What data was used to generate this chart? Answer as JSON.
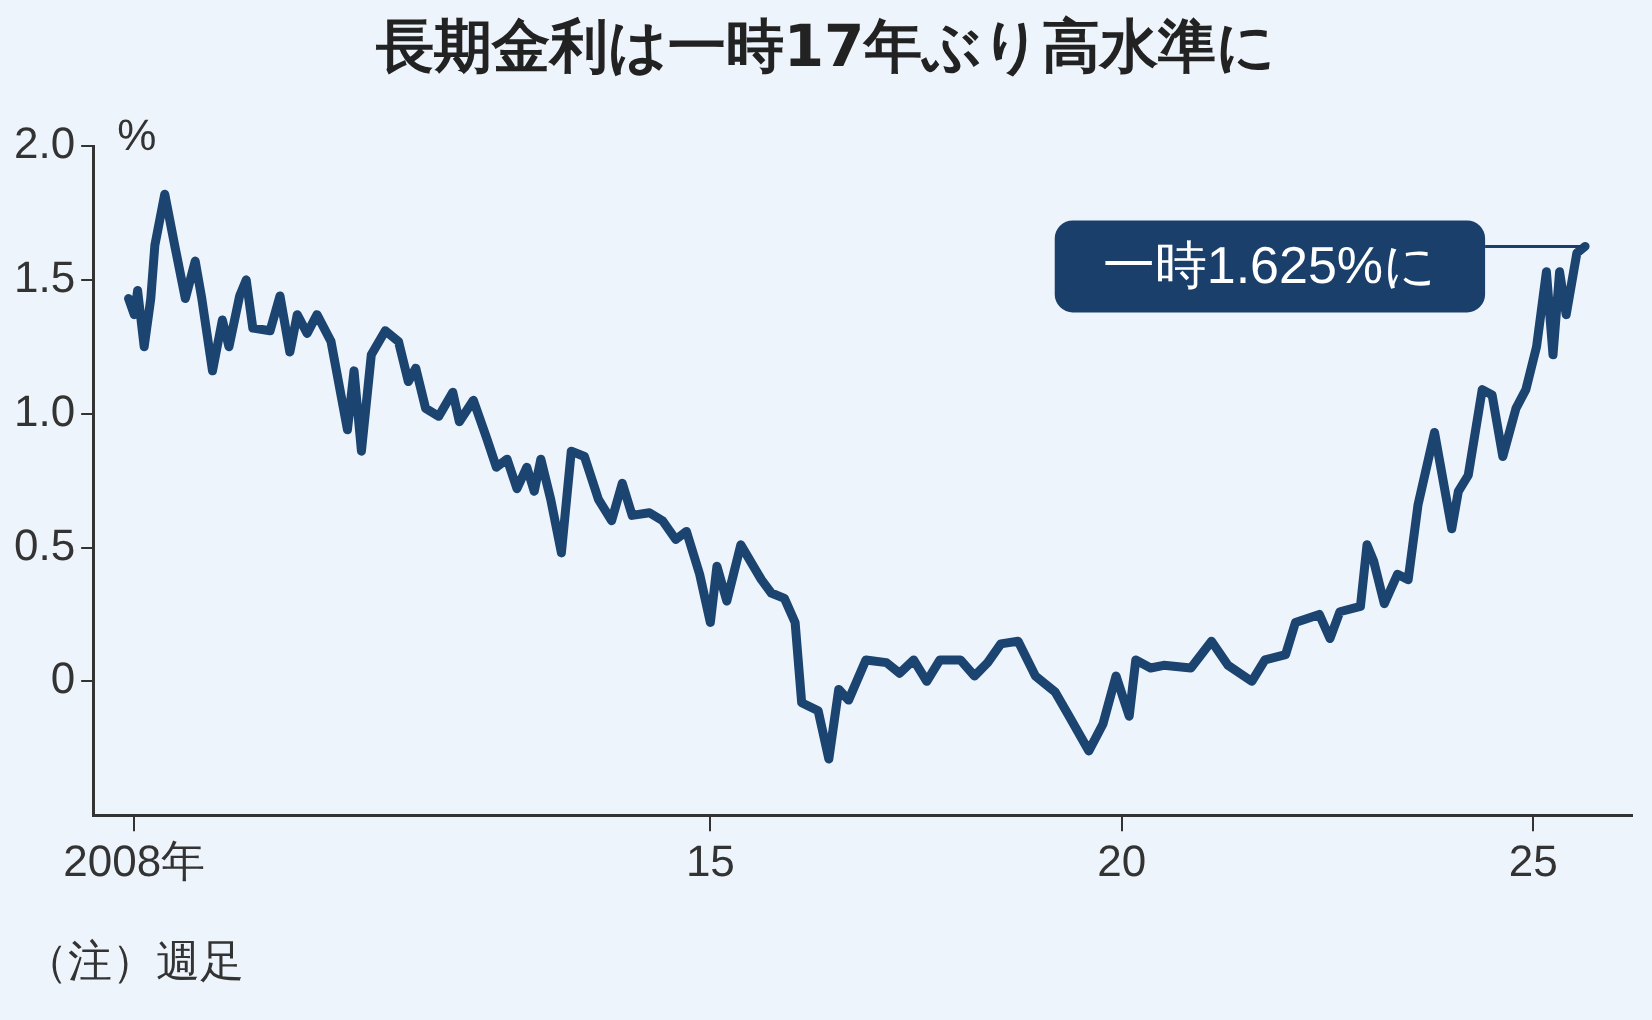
{
  "chart_data": {
    "type": "line",
    "title": "長期金利は一時17年ぶり高水準に",
    "ylabel": "%",
    "annotations": [
      {
        "text": "一時1.625%に",
        "x": 2025.63,
        "y": 1.625
      },
      "（注）週足"
    ],
    "x": [
      2007.93,
      2008,
      2008.04,
      2008.12,
      2008.2,
      2008.25,
      2008.37,
      2008.49,
      2008.62,
      2008.74,
      2008.82,
      2008.95,
      2009.07,
      2009.15,
      2009.28,
      2009.36,
      2009.44,
      2009.65,
      2009.77,
      2009.89,
      2009.98,
      2010.1,
      2010.22,
      2010.39,
      2010.59,
      2010.67,
      2010.76,
      2010.88,
      2011.05,
      2011.21,
      2011.33,
      2011.42,
      2011.54,
      2011.7,
      2011.87,
      2011.95,
      2012.12,
      2012.28,
      2012.4,
      2012.53,
      2012.65,
      2012.77,
      2012.86,
      2012.94,
      2013.06,
      2013.19,
      2013.31,
      2013.47,
      2013.64,
      2013.8,
      2013.93,
      2014.05,
      2014.26,
      2014.42,
      2014.58,
      2014.71,
      2014.87,
      2015,
      2015.08,
      2015.2,
      2015.37,
      2015.62,
      2015.74,
      2015.9,
      2016.03,
      2016.11,
      2016.31,
      2016.44,
      2016.56,
      2016.68,
      2016.89,
      2017.14,
      2017.3,
      2017.47,
      2017.63,
      2017.79,
      2018.04,
      2018.21,
      2018.37,
      2018.53,
      2018.74,
      2018.95,
      2019.19,
      2019.36,
      2019.6,
      2019.77,
      2019.93,
      2020.09,
      2020.17,
      2020.35,
      2020.51,
      2020.84,
      2021.09,
      2021.29,
      2021.58,
      2021.74,
      2021.99,
      2022.11,
      2022.4,
      2022.53,
      2022.65,
      2022.9,
      2022.98,
      2023.06,
      2023.19,
      2023.35,
      2023.48,
      2023.6,
      2023.8,
      2024.01,
      2024.09,
      2024.21,
      2024.38,
      2024.5,
      2024.63,
      2024.79,
      2024.91,
      2025.04,
      2025.16,
      2025.24,
      2025.32,
      2025.4,
      2025.53,
      2025.63
    ],
    "series": [
      {
        "color": "#1b4470",
        "values": [
          1.43,
          1.37,
          1.46,
          1.25,
          1.43,
          1.63,
          1.82,
          1.63,
          1.43,
          1.57,
          1.43,
          1.16,
          1.35,
          1.25,
          1.44,
          1.5,
          1.32,
          1.31,
          1.44,
          1.23,
          1.37,
          1.3,
          1.37,
          1.27,
          0.94,
          1.16,
          0.86,
          1.22,
          1.31,
          1.27,
          1.12,
          1.17,
          1.02,
          0.99,
          1.08,
          0.97,
          1.05,
          0.91,
          0.8,
          0.83,
          0.72,
          0.8,
          0.71,
          0.83,
          0.68,
          0.48,
          0.86,
          0.84,
          0.68,
          0.6,
          0.74,
          0.62,
          0.63,
          0.6,
          0.53,
          0.56,
          0.4,
          0.22,
          0.43,
          0.3,
          0.51,
          0.38,
          0.33,
          0.31,
          0.22,
          -0.08,
          -0.11,
          -0.29,
          -0.03,
          -0.07,
          0.08,
          0.07,
          0.03,
          0.08,
          0,
          0.08,
          0.08,
          0.02,
          0.07,
          0.14,
          0.15,
          0.02,
          -0.04,
          -0.13,
          -0.26,
          -0.16,
          0.02,
          -0.13,
          0.08,
          0.05,
          0.06,
          0.05,
          0.15,
          0.06,
          0,
          0.08,
          0.1,
          0.22,
          0.25,
          0.16,
          0.26,
          0.28,
          0.51,
          0.45,
          0.29,
          0.4,
          0.38,
          0.66,
          0.93,
          0.57,
          0.71,
          0.77,
          1.09,
          1.07,
          0.84,
          1.02,
          1.09,
          1.25,
          1.53,
          1.22,
          1.53,
          1.37,
          1.6,
          1.625
        ]
      }
    ],
    "xlim": [
      2007.5,
      2026.2
    ],
    "xticks": [
      {
        "value": 2008,
        "label": "2008年"
      },
      {
        "value": 2015,
        "label": "15"
      },
      {
        "value": 2020,
        "label": "20"
      },
      {
        "value": 2025,
        "label": "25"
      }
    ],
    "ylim": [
      -0.5,
      2.0
    ],
    "yticks": [
      0,
      {
        "value": 0.5,
        "label": "0.5"
      },
      {
        "value": 1,
        "label": "1.0"
      },
      {
        "value": 1.5,
        "label": "1.5"
      },
      {
        "value": 2,
        "label": "2.0"
      }
    ],
    "grid": false,
    "legend": false,
    "marker": "none",
    "line_style": "solid"
  }
}
